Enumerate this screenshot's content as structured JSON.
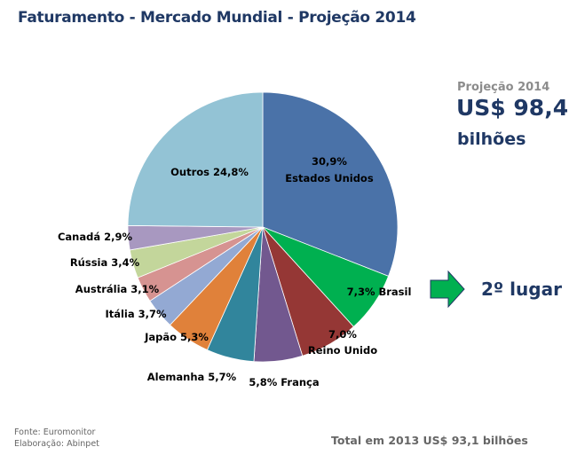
{
  "title": "Faturamento - Mercado Mundial - Projeção 2014",
  "projection": {
    "label": "Projeção 2014",
    "value": "US$ 98,4",
    "unit": "bilhões"
  },
  "rank": {
    "icon": "right-arrow-icon",
    "text": "2º lugar",
    "arrow_color": "#00b050"
  },
  "source": {
    "line1": "Fonte: Euromonitor",
    "line2": "Elaboração: Abinpet"
  },
  "total": "Total em 2013 US$ 93,1 bilhões",
  "chart_data": {
    "type": "pie",
    "title": "Faturamento - Mercado Mundial - Projeção 2014",
    "start_angle": "12 o'clock, clockwise",
    "slices": [
      {
        "name": "Estados Unidos",
        "value": 30.9,
        "label": [
          "30,9%",
          "Estados Unidos"
        ],
        "color": "#4a72a8"
      },
      {
        "name": "Brasil",
        "value": 7.3,
        "label": [
          "7,3% Brasil"
        ],
        "color": "#00b050"
      },
      {
        "name": "Reino Unido",
        "value": 7.0,
        "label": [
          "7,0%",
          "Reino Unido"
        ],
        "color": "#953735"
      },
      {
        "name": "França",
        "value": 5.8,
        "label": [
          "5,8% França"
        ],
        "color": "#72588f"
      },
      {
        "name": "Alemanha",
        "value": 5.7,
        "label": [
          "Alemanha 5,7%"
        ],
        "color": "#31859c"
      },
      {
        "name": "Japão",
        "value": 5.3,
        "label": [
          "Japão 5,3%"
        ],
        "color": "#e0813a"
      },
      {
        "name": "Itália",
        "value": 3.7,
        "label": [
          "Itália 3,7%"
        ],
        "color": "#93a9d3"
      },
      {
        "name": "Austrália",
        "value": 3.1,
        "label": [
          "Austrália 3,1%"
        ],
        "color": "#d69391"
      },
      {
        "name": "Rússia",
        "value": 3.4,
        "label": [
          "Rússia 3,4%"
        ],
        "color": "#c3d69b"
      },
      {
        "name": "Canadá",
        "value": 2.9,
        "label": [
          "Canadá 2,9%"
        ],
        "color": "#a898c0"
      },
      {
        "name": "Outros",
        "value": 24.8,
        "label": [
          "Outros 24,8%"
        ],
        "color": "#93c3d5"
      }
    ]
  }
}
